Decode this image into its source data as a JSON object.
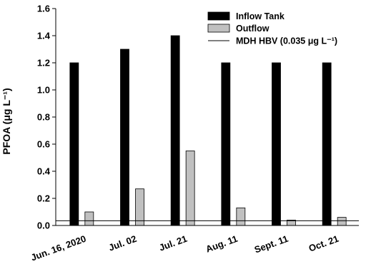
{
  "chart_data": {
    "type": "bar",
    "ylabel": "PFOA (μg L⁻¹)",
    "ylim": [
      0,
      1.6
    ],
    "yticks": [
      "0.0",
      "0.2",
      "0.4",
      "0.6",
      "0.8",
      "1.0",
      "1.2",
      "1.4",
      "1.6"
    ],
    "categories": [
      "Jun. 16, 2020",
      "Jul. 02",
      "Jul. 21",
      "Aug. 11",
      "Sept. 11",
      "Oct. 21"
    ],
    "series": [
      {
        "name": "Inflow Tank",
        "color": "#000000",
        "values": [
          1.2,
          1.3,
          1.4,
          1.2,
          1.2,
          1.2
        ]
      },
      {
        "name": "Outflow",
        "color": "#c0c0c0",
        "values": [
          0.1,
          0.27,
          0.55,
          0.13,
          0.04,
          0.06
        ]
      }
    ],
    "reference_line": {
      "name": "MDH HBV (0.035 μg L⁻¹)",
      "value": 0.035
    },
    "legend_position": "top-right",
    "grid": false
  }
}
